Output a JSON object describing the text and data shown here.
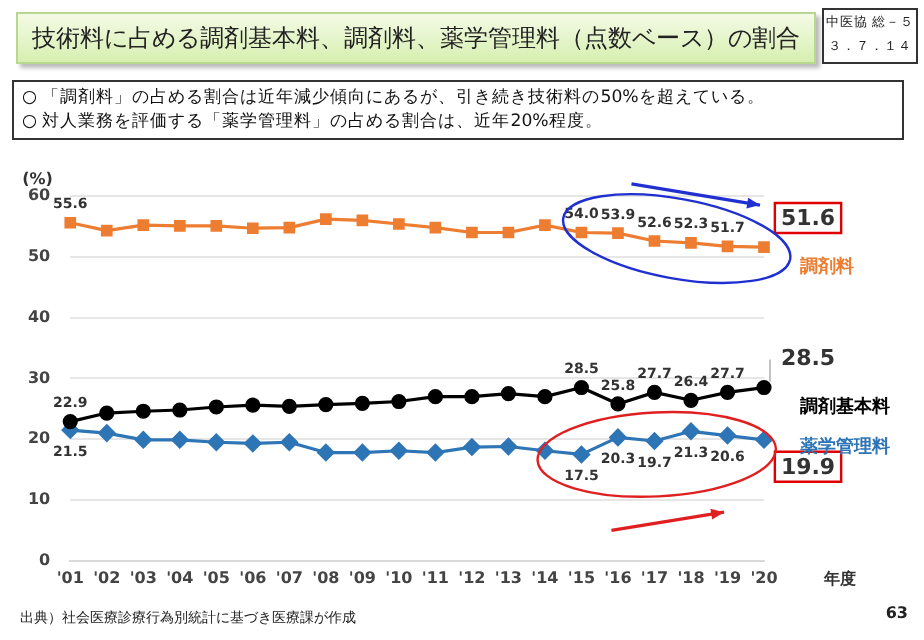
{
  "chart_data": {
    "type": "line",
    "title": "技術料に占める調剤基本料、調剤料、薬学管理料（点数ベース）の割合",
    "subtitle": "○ 「調剤料」の占める割合は近年減少傾向にあるが、引き続き技術料の50%を超えている。\n○ 対人業務を評価する「薬学管理料」の占める割合は、近年20%程度。",
    "annotations": [
      "中医協 総－５",
      "３．７．１４",
      "出典）社会医療診療行為別統計に基づき医療課が作成",
      "63"
    ],
    "xlabel": "年度",
    "ylabel": "(%)",
    "categories": [
      "'01",
      "'02",
      "'03",
      "'04",
      "'05",
      "'06",
      "'07",
      "'08",
      "'09",
      "'10",
      "'11",
      "'12",
      "'13",
      "'14",
      "'15",
      "'16",
      "'17",
      "'18",
      "'19",
      "'20"
    ],
    "ylim": [
      0,
      60
    ],
    "yticks": [
      0,
      10,
      20,
      30,
      40,
      50,
      60
    ],
    "grid": "y",
    "legend": false,
    "series": [
      {
        "name": "調剤料",
        "color": "#ed7d31",
        "marker": "square",
        "values": [
          55.6,
          54.3,
          55.2,
          55.1,
          55.1,
          54.7,
          54.8,
          56.2,
          56.0,
          55.4,
          54.8,
          54.0,
          54.0,
          55.2,
          54.0,
          53.9,
          52.6,
          52.3,
          51.7,
          51.6
        ],
        "value_labels": [
          "55.6",
          null,
          null,
          null,
          null,
          null,
          null,
          null,
          null,
          null,
          null,
          null,
          null,
          null,
          "54.0",
          "53.9",
          "52.6",
          "52.3",
          "51.7",
          "51.6"
        ]
      },
      {
        "name": "調剤基本料",
        "color": "#000000",
        "marker": "circle",
        "values": [
          22.9,
          24.3,
          24.6,
          24.8,
          25.3,
          25.6,
          25.4,
          25.7,
          25.9,
          26.2,
          27.0,
          27.0,
          27.5,
          27.0,
          28.5,
          25.8,
          27.7,
          26.4,
          27.7,
          28.5
        ],
        "value_labels": [
          "22.9",
          null,
          null,
          null,
          null,
          null,
          null,
          null,
          null,
          null,
          null,
          null,
          null,
          null,
          "28.5",
          "25.8",
          "27.7",
          "26.4",
          "27.7",
          "28.5"
        ]
      },
      {
        "name": "薬学管理料",
        "color": "#2e75b6",
        "marker": "diamond",
        "values": [
          21.5,
          21.0,
          19.9,
          19.9,
          19.5,
          19.3,
          19.5,
          17.8,
          17.8,
          18.1,
          17.8,
          18.7,
          18.8,
          18.1,
          17.5,
          20.3,
          19.7,
          21.3,
          20.6,
          19.9
        ],
        "value_labels": [
          "21.5",
          null,
          null,
          null,
          null,
          null,
          null,
          null,
          null,
          null,
          null,
          null,
          null,
          null,
          "17.5",
          "20.3",
          "19.7",
          "21.3",
          "20.6",
          "19.9"
        ]
      }
    ]
  }
}
